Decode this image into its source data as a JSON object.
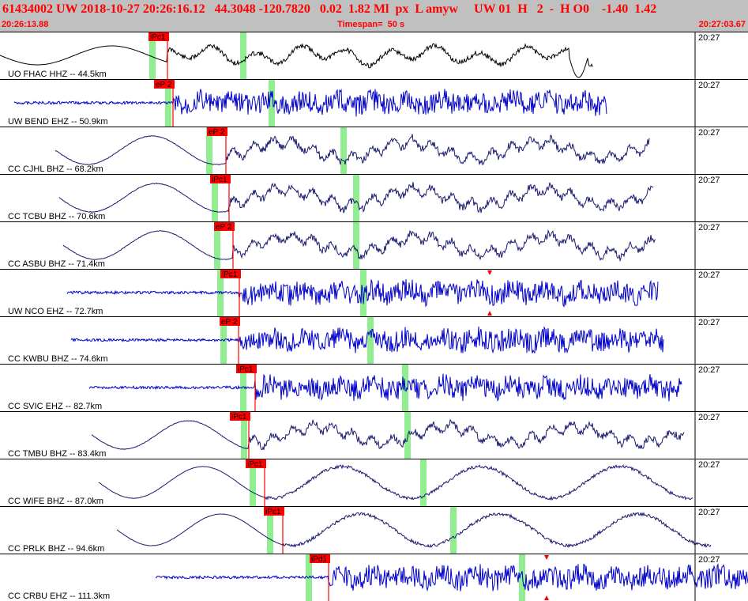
{
  "header": {
    "title": "61434002 UW 2018-10-27 20:26:16.12   44.3048 -120.7820   0.02  1.82 Ml  px  L amyw     UW 01  H   2  -  H O0    -1.40  1.42",
    "start_time": "20:26:13.88",
    "timespan": "Timespan=  50 s",
    "end_time": "20:27:03.67"
  },
  "colors": {
    "header_bg": "#c0c0c0",
    "header_text": "#ff0000",
    "pick": "#ff0000",
    "window": "#90ee90",
    "trace_blue": "#0000cc",
    "trace_black": "#000000",
    "trace_navy": "#1a1a6e"
  },
  "traces": [
    {
      "label": "UO FHAC HHZ -- 44.5km",
      "time": "20:27",
      "pick": "iPc1",
      "color": "black"
    },
    {
      "label": "UW BEND EHZ -- 50.9km",
      "time": "20:27",
      "pick": "eP 2",
      "color": "blue"
    },
    {
      "label": "CC CJHL BHZ -- 68.2km",
      "time": "20:27",
      "pick": "eP 2",
      "color": "navy"
    },
    {
      "label": "CC TCBU BHZ -- 70.6km",
      "time": "20:27",
      "pick": "iPc1",
      "color": "navy"
    },
    {
      "label": "CC ASBU BHZ -- 71.4km",
      "time": "20:27",
      "pick": "eP 2",
      "color": "navy"
    },
    {
      "label": "UW NCO EHZ -- 72.7km",
      "time": "20:27",
      "pick": "iPc1",
      "color": "blue",
      "marker": true
    },
    {
      "label": "CC KWBU BHZ -- 74.6km",
      "time": "20:27",
      "pick": "eP 2",
      "color": "blue"
    },
    {
      "label": "CC SVIC EHZ -- 82.7km",
      "time": "20:27",
      "pick": "iPc1",
      "color": "blue"
    },
    {
      "label": "CC TMBU BHZ -- 83.4km",
      "time": "20:27",
      "pick": "iPc1",
      "color": "navy"
    },
    {
      "label": "CC WIFE BHZ -- 87.0km",
      "time": "20:27",
      "pick": "iPc1",
      "color": "navy"
    },
    {
      "label": "CC PRLK BHZ -- 94.6km",
      "time": "20:27",
      "pick": "iPc1",
      "color": "navy"
    },
    {
      "label": "CC CRBU EHZ -- 111.3km",
      "time": "20:27",
      "pick": "iPd1",
      "color": "blue",
      "marker": true
    }
  ]
}
